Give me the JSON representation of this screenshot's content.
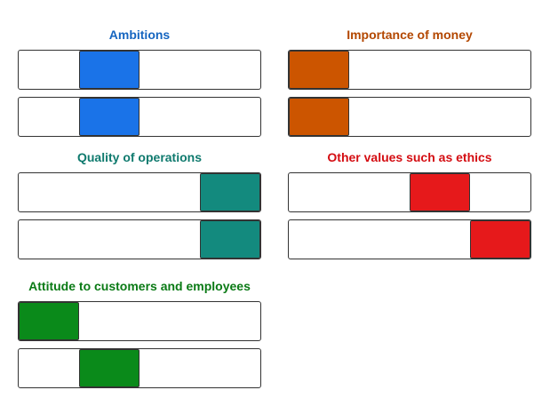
{
  "groups": [
    {
      "id": "ambitions",
      "title": "Ambitions",
      "color": "#1a73e8",
      "title_color": "#1565c0",
      "sliders": [
        {
          "segment": 2
        },
        {
          "segment": 2
        }
      ]
    },
    {
      "id": "money",
      "title": "Importance of money",
      "color": "#cc5500",
      "title_color": "#b34700",
      "sliders": [
        {
          "segment": 1
        },
        {
          "segment": 1
        }
      ]
    },
    {
      "id": "quality",
      "title": "Quality of operations",
      "color": "#138a7e",
      "title_color": "#0f7a6e",
      "sliders": [
        {
          "segment": 4
        },
        {
          "segment": 4
        }
      ]
    },
    {
      "id": "ethics",
      "title": "Other values such as ethics",
      "color": "#e6191b",
      "title_color": "#d40d12",
      "sliders": [
        {
          "segment": 3
        },
        {
          "segment": 4
        }
      ]
    },
    {
      "id": "attitude",
      "title": "Attitude to customers and employees",
      "color": "#0a8a1a",
      "title_color": "#0a7a15",
      "sliders": [
        {
          "segment": 1
        },
        {
          "segment": 2
        }
      ]
    }
  ],
  "scale": {
    "segments": 4
  }
}
